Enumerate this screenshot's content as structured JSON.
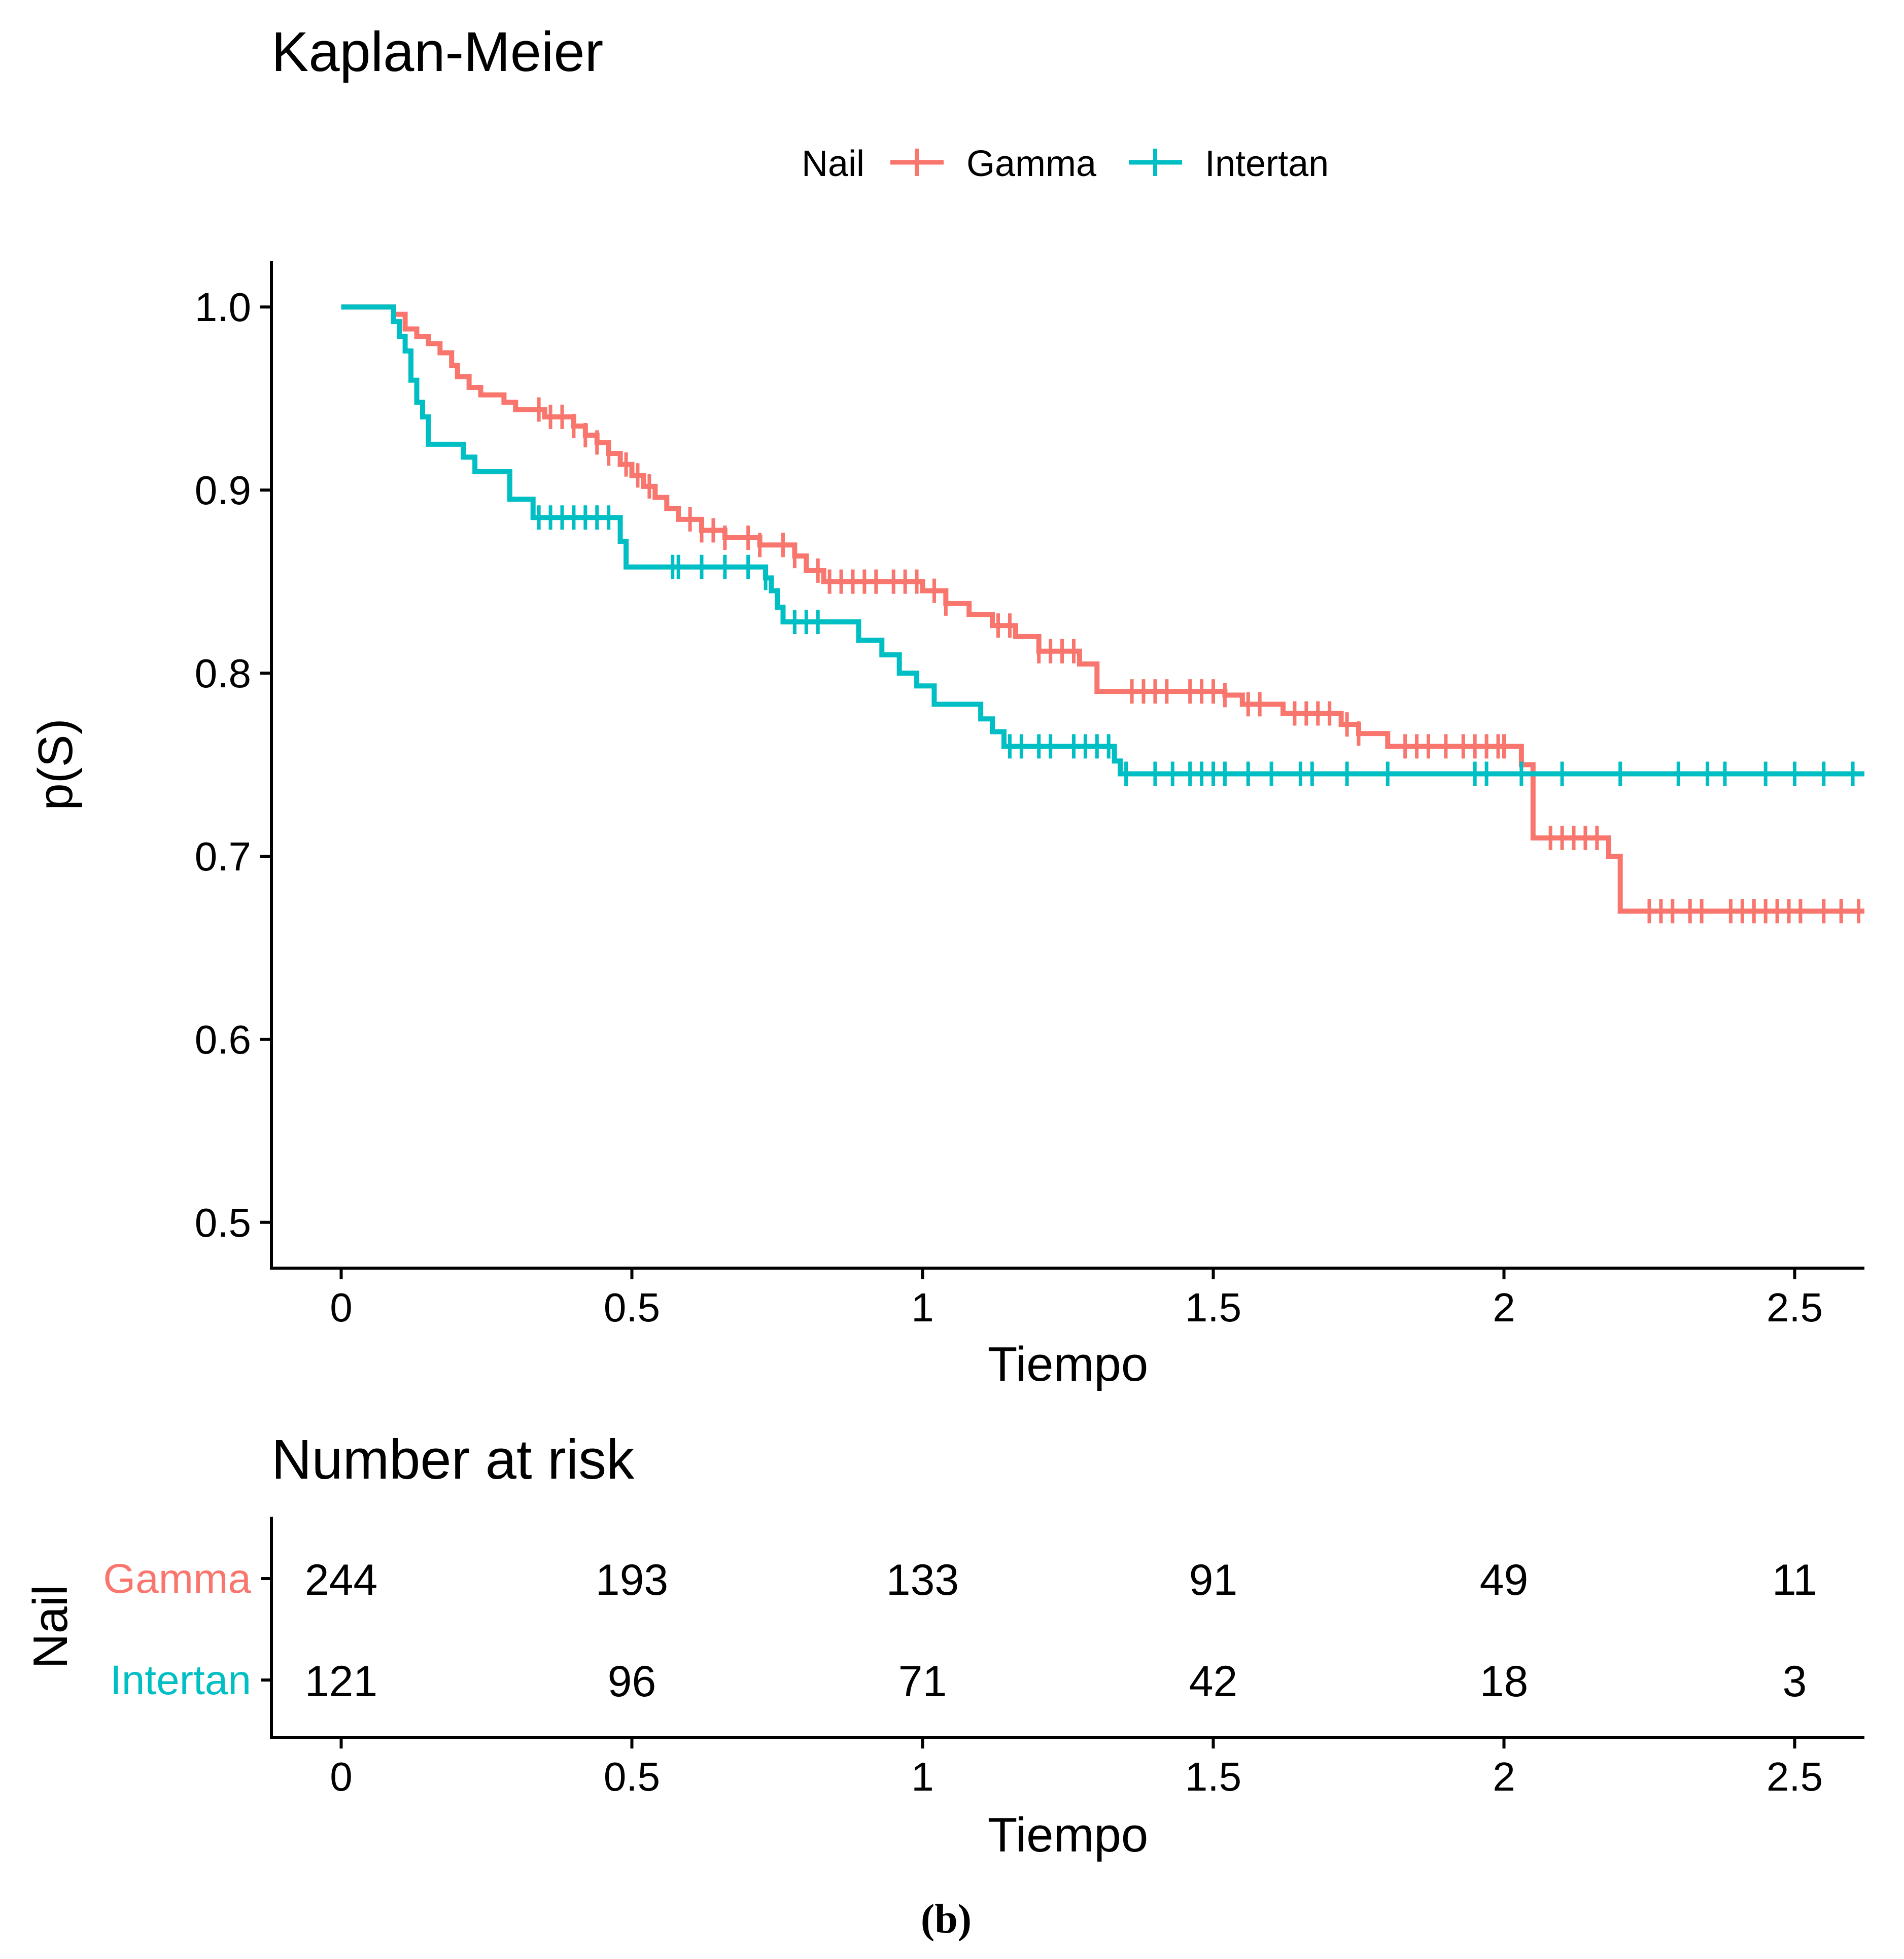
{
  "chart_data": [
    {
      "type": "line",
      "subtype": "kaplan-meier-step",
      "title": "Kaplan-Meier",
      "xlabel": "Tiempo",
      "ylabel": "p(S)",
      "xlim": [
        -0.12,
        2.62
      ],
      "ylim": [
        0.475,
        1.025
      ],
      "xticks": [
        0,
        0.5,
        1,
        1.5,
        2,
        2.5
      ],
      "xtick_labels": [
        "0",
        "0.5",
        "1",
        "1.5",
        "2",
        "2.5"
      ],
      "yticks": [
        0.5,
        0.6,
        0.7,
        0.8,
        0.9,
        1.0
      ],
      "ytick_labels": [
        "0.5",
        "0.6",
        "0.7",
        "0.8",
        "0.9",
        "1.0"
      ],
      "grid": false,
      "legend": {
        "title": "Nail",
        "position": "top"
      },
      "series": [
        {
          "name": "Gamma",
          "color": "#F8766D",
          "x": [
            0,
            0.09,
            0.11,
            0.13,
            0.15,
            0.17,
            0.19,
            0.2,
            0.22,
            0.24,
            0.28,
            0.3,
            0.35,
            0.4,
            0.42,
            0.44,
            0.46,
            0.48,
            0.5,
            0.52,
            0.54,
            0.56,
            0.58,
            0.62,
            0.66,
            0.72,
            0.78,
            0.8,
            0.83,
            1.0,
            1.04,
            1.08,
            1.12,
            1.16,
            1.2,
            1.27,
            1.3,
            1.52,
            1.55,
            1.62,
            1.72,
            1.75,
            1.8,
            2.03,
            2.05,
            2.18,
            2.2,
            2.62
          ],
          "y": [
            1.0,
            0.996,
            0.988,
            0.984,
            0.98,
            0.975,
            0.968,
            0.962,
            0.956,
            0.952,
            0.948,
            0.944,
            0.94,
            0.935,
            0.93,
            0.926,
            0.92,
            0.914,
            0.908,
            0.902,
            0.896,
            0.89,
            0.884,
            0.878,
            0.874,
            0.87,
            0.864,
            0.856,
            0.85,
            0.845,
            0.838,
            0.832,
            0.826,
            0.82,
            0.812,
            0.805,
            0.79,
            0.788,
            0.783,
            0.778,
            0.772,
            0.767,
            0.76,
            0.75,
            0.71,
            0.7,
            0.67,
            0.67
          ],
          "censor_times": [
            0.34,
            0.36,
            0.38,
            0.4,
            0.42,
            0.44,
            0.46,
            0.49,
            0.51,
            0.53,
            0.6,
            0.62,
            0.64,
            0.66,
            0.7,
            0.72,
            0.76,
            0.78,
            0.82,
            0.84,
            0.86,
            0.88,
            0.9,
            0.92,
            0.95,
            0.97,
            0.99,
            1.02,
            1.04,
            1.13,
            1.15,
            1.2,
            1.22,
            1.24,
            1.26,
            1.36,
            1.38,
            1.4,
            1.42,
            1.46,
            1.48,
            1.5,
            1.52,
            1.56,
            1.58,
            1.64,
            1.66,
            1.68,
            1.7,
            1.73,
            1.75,
            1.83,
            1.85,
            1.87,
            1.9,
            1.93,
            1.95,
            1.97,
            1.99,
            2.0,
            2.08,
            2.1,
            2.12,
            2.14,
            2.16,
            2.25,
            2.27,
            2.29,
            2.32,
            2.34,
            2.39,
            2.41,
            2.43,
            2.45,
            2.47,
            2.49,
            2.51,
            2.55,
            2.58,
            2.61
          ]
        },
        {
          "name": "Intertan",
          "color": "#00BFC4",
          "x": [
            0,
            0.09,
            0.1,
            0.11,
            0.12,
            0.13,
            0.14,
            0.15,
            0.21,
            0.23,
            0.29,
            0.33,
            0.48,
            0.49,
            0.73,
            0.74,
            0.75,
            0.76,
            0.89,
            0.93,
            0.96,
            0.99,
            1.02,
            1.1,
            1.12,
            1.14,
            1.33,
            1.34,
            2.62
          ],
          "y": [
            1.0,
            0.992,
            0.984,
            0.976,
            0.96,
            0.948,
            0.94,
            0.925,
            0.918,
            0.91,
            0.895,
            0.885,
            0.872,
            0.858,
            0.852,
            0.845,
            0.836,
            0.828,
            0.818,
            0.81,
            0.8,
            0.793,
            0.783,
            0.775,
            0.768,
            0.76,
            0.752,
            0.745,
            0.745
          ],
          "censor_times": [
            0.34,
            0.36,
            0.38,
            0.4,
            0.42,
            0.44,
            0.46,
            0.57,
            0.58,
            0.62,
            0.66,
            0.7,
            0.73,
            0.78,
            0.8,
            0.82,
            1.15,
            1.17,
            1.2,
            1.22,
            1.26,
            1.28,
            1.3,
            1.32,
            1.35,
            1.4,
            1.43,
            1.46,
            1.48,
            1.5,
            1.52,
            1.56,
            1.6,
            1.65,
            1.67,
            1.73,
            1.8,
            1.95,
            1.97,
            2.03,
            2.1,
            2.2,
            2.3,
            2.35,
            2.38,
            2.45,
            2.5,
            2.55,
            2.6
          ]
        }
      ]
    },
    {
      "type": "table",
      "title": "Number at risk",
      "xlabel": "Tiempo",
      "ylabel": "Nail",
      "xlim": [
        -0.12,
        2.62
      ],
      "xticks": [
        0,
        0.5,
        1,
        1.5,
        2,
        2.5
      ],
      "xtick_labels": [
        "0",
        "0.5",
        "1",
        "1.5",
        "2",
        "2.5"
      ],
      "rows": [
        {
          "name": "Gamma",
          "color": "#F8766D",
          "values": [
            "244",
            "193",
            "133",
            "91",
            "49",
            "11"
          ]
        },
        {
          "name": "Intertan",
          "color": "#00BFC4",
          "values": [
            "121",
            "96",
            "71",
            "42",
            "18",
            "3"
          ]
        }
      ]
    }
  ],
  "caption": "(b)"
}
